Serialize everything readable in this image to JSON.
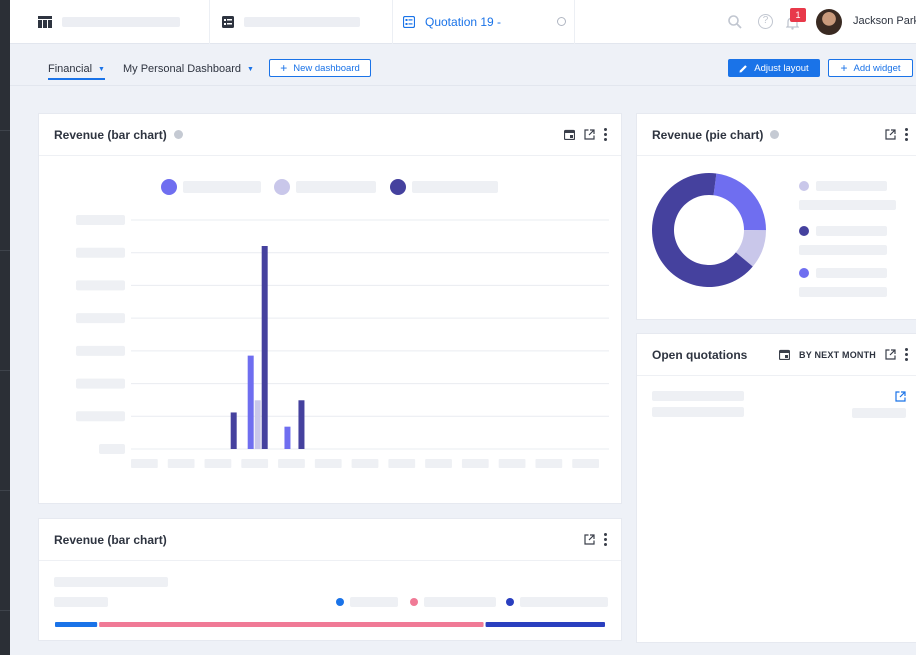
{
  "topbar": {
    "tabs": [
      {
        "label": ""
      },
      {
        "label": ""
      },
      {
        "label": "Quotation 19 -"
      }
    ],
    "notification_count": "1",
    "user_name": "Jackson Parke"
  },
  "toolbar": {
    "dashboards": [
      {
        "label": "Financial"
      },
      {
        "label": "My Personal Dashboard"
      }
    ],
    "new_dashboard_label": "New dashboard",
    "adjust_layout_label": "Adjust layout",
    "add_widget_label": "Add widget"
  },
  "widgets": {
    "bar_chart": {
      "title": "Revenue (bar chart)",
      "legend_colors": [
        "#6f6ef0",
        "#c9c7ea",
        "#45419e"
      ]
    },
    "pie_chart": {
      "title": "Revenue (pie chart)",
      "legend_colors": [
        "#c9c7ea",
        "#45419e",
        "#6f6ef0"
      ]
    },
    "open_quotations": {
      "title": "Open quotations",
      "filter_label": "BY NEXT MONTH"
    },
    "bar_chart_2": {
      "title": "Revenue (bar chart)",
      "legend_colors": [
        "#1a73e8",
        "#f07a96",
        "#2a3fbf"
      ]
    }
  },
  "chart_data": [
    {
      "type": "bar",
      "categories": [
        "",
        "",
        "",
        "",
        "",
        "",
        "",
        "",
        "",
        "",
        "",
        "",
        ""
      ],
      "series": [
        {
          "color": "#45419e",
          "values": [
            0,
            0,
            0,
            0.18,
            0,
            0,
            0,
            0,
            0,
            0,
            0,
            0,
            0
          ]
        },
        {
          "color": "#6f6ef0",
          "values": [
            0,
            0,
            0,
            0.46,
            0.11,
            0,
            0,
            0,
            0,
            0,
            0,
            0,
            0
          ]
        },
        {
          "color": "#c9c7ea",
          "values": [
            0,
            0,
            0,
            0.24,
            0,
            0,
            0,
            0,
            0,
            0,
            0,
            0,
            0
          ]
        },
        {
          "color": "#45419e",
          "values": [
            0,
            0,
            0,
            1.0,
            0.24,
            0,
            0,
            0,
            0,
            0,
            0,
            0,
            0
          ]
        }
      ],
      "grid": true
    },
    {
      "type": "pie",
      "slices": [
        {
          "color": "#6f6ef0",
          "value": 0.23
        },
        {
          "color": "#c9c7ea",
          "value": 0.11
        },
        {
          "color": "#45419e",
          "value": 0.66
        }
      ],
      "donut": true
    },
    {
      "type": "bar",
      "orientation": "stacked-horizontal",
      "series": [
        {
          "color": "#1a73e8",
          "value": 0.08
        },
        {
          "color": "#f07a96",
          "value": 0.7
        },
        {
          "color": "#2a3fbf",
          "value": 0.22
        }
      ]
    }
  ]
}
